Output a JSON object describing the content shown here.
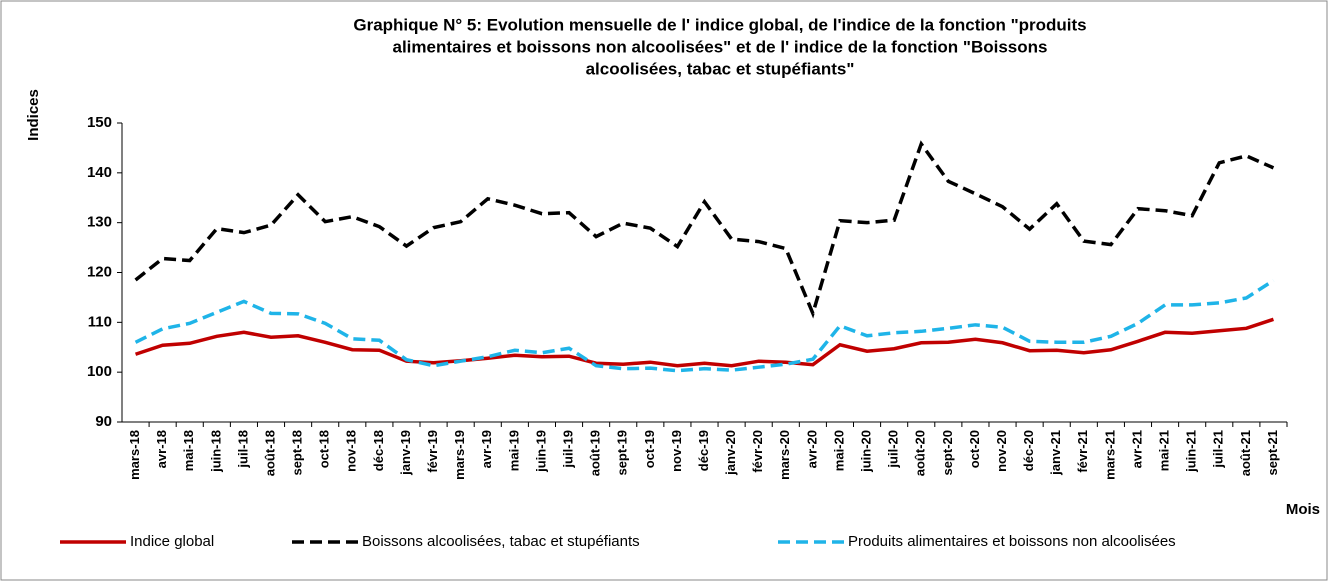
{
  "chart_data": {
    "type": "line",
    "title": [
      "Graphique N° 5: Evolution mensuelle de l' indice global, de l'indice de la fonction \"produits",
      "alimentaires et boissons non alcoolisées\" et de l' indice de la fonction \"Boissons",
      "alcoolisées, tabac et stupéfiants\""
    ],
    "y_label": "Indices",
    "x_label": "Mois",
    "categories": [
      "mars-18",
      "avr-18",
      "mai-18",
      "juin-18",
      "juil-18",
      "août-18",
      "sept-18",
      "oct-18",
      "nov-18",
      "déc-18",
      "janv-19",
      "févr-19",
      "mars-19",
      "avr-19",
      "mai-19",
      "juin-19",
      "juil-19",
      "août-19",
      "sept-19",
      "oct-19",
      "nov-19",
      "déc-19",
      "janv-20",
      "févr-20",
      "mars-20",
      "avr-20",
      "mai-20",
      "juin-20",
      "juil-20",
      "août-20",
      "sept-20",
      "oct-20",
      "nov-20",
      "déc-20",
      "janv-21",
      "févr-21",
      "mars-21",
      "avr-21",
      "mai-21",
      "juin-21",
      "juil-21",
      "août-21",
      "sept-21"
    ],
    "series": [
      {
        "name": "Indice global",
        "color": "#c00000",
        "dash": "solid",
        "values": [
          103.6,
          105.4,
          105.8,
          107.2,
          108,
          107,
          107.3,
          106,
          104.5,
          104.4,
          102.2,
          101.9,
          102.3,
          102.8,
          103.4,
          103.1,
          103.2,
          101.8,
          101.6,
          102,
          101.3,
          101.8,
          101.3,
          102.2,
          102,
          101.5,
          105.5,
          104.2,
          104.7,
          105.9,
          106,
          106.6,
          105.9,
          104.3,
          104.4,
          103.9,
          104.5,
          106.2,
          108,
          107.8,
          108.3,
          108.8,
          110.6
        ]
      },
      {
        "name": "Boissons alcoolisées, tabac et stupéfiants",
        "color": "#000000",
        "dash": "dashed",
        "values": [
          118.5,
          122.8,
          122.4,
          128.8,
          128,
          129.5,
          135.6,
          130.2,
          131.2,
          129.2,
          125.3,
          129,
          130.2,
          134.8,
          133.5,
          131.8,
          132,
          127.2,
          129.9,
          128.9,
          125.2,
          134.2,
          126.7,
          126.2,
          124.8,
          111.8,
          130.4,
          130,
          130.5,
          145.8,
          138.3,
          135.8,
          133.2,
          128.7,
          133.8,
          126.3,
          125.6,
          132.8,
          132.4,
          131.4,
          142,
          143.4,
          141
        ]
      },
      {
        "name": "Produits alimentaires et boissons non alcoolisées",
        "color": "#1fb4e8",
        "dash": "dashed",
        "values": [
          106,
          108.7,
          109.8,
          112,
          114.2,
          111.8,
          111.7,
          109.8,
          106.7,
          106.4,
          102.5,
          101.3,
          102.2,
          103.1,
          104.4,
          103.9,
          104.8,
          101.3,
          100.7,
          100.8,
          100.3,
          100.7,
          100.4,
          101,
          101.6,
          102.6,
          109.3,
          107.3,
          107.9,
          108.2,
          108.8,
          109.5,
          109,
          106.2,
          106,
          106,
          107.2,
          109.8,
          113.5,
          113.5,
          113.9,
          114.9,
          118.4
        ]
      }
    ],
    "ylim": [
      90,
      150
    ],
    "yticks": [
      90,
      100,
      110,
      120,
      130,
      140,
      150
    ],
    "grid": false
  }
}
